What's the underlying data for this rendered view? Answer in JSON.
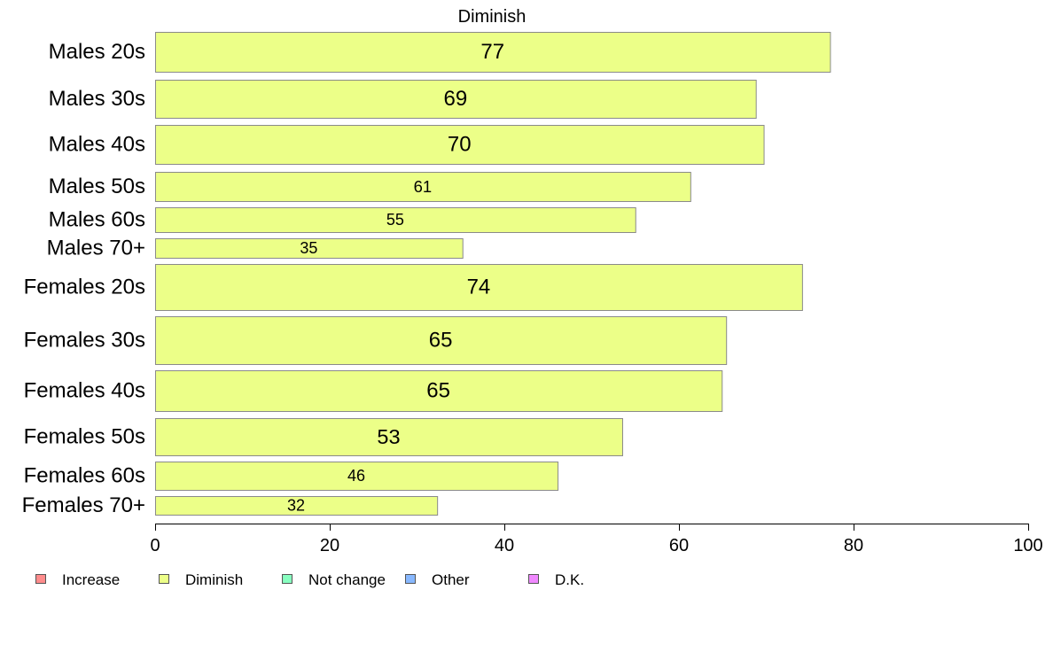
{
  "chart_data": {
    "type": "bar",
    "orientation": "horizontal",
    "title": "Diminish",
    "xlabel": "",
    "ylabel": "",
    "xlim": [
      0,
      100
    ],
    "xticks": [
      0,
      20,
      40,
      60,
      80,
      100
    ],
    "grid": false,
    "bar_color": "#ecff88",
    "bar_border_color": "#8a8a8a",
    "categories": [
      "Males 20s",
      "Males 30s",
      "Males 40s",
      "Males 50s",
      "Males 60s",
      "Males 70+",
      "Females 20s",
      "Females 30s",
      "Females 40s",
      "Females 50s",
      "Females 60s",
      "Females 70+"
    ],
    "values": [
      77.3,
      68.8,
      69.7,
      61.3,
      55.0,
      35.2,
      74.1,
      65.4,
      64.9,
      53.5,
      46.1,
      32.3
    ],
    "data_labels": [
      "77",
      "69",
      "70",
      "61",
      "55",
      "35",
      "74",
      "65",
      "65",
      "53",
      "46",
      "32"
    ],
    "legend": {
      "placement": "bottom-left",
      "items": [
        {
          "label": "Increase",
          "color": "#ff8c8c"
        },
        {
          "label": "Diminish",
          "color": "#ecff88"
        },
        {
          "label": "Not change",
          "color": "#88ffc0"
        },
        {
          "label": "Other",
          "color": "#88b8ff"
        },
        {
          "label": "D.K.",
          "color": "#f088ff"
        }
      ]
    }
  }
}
